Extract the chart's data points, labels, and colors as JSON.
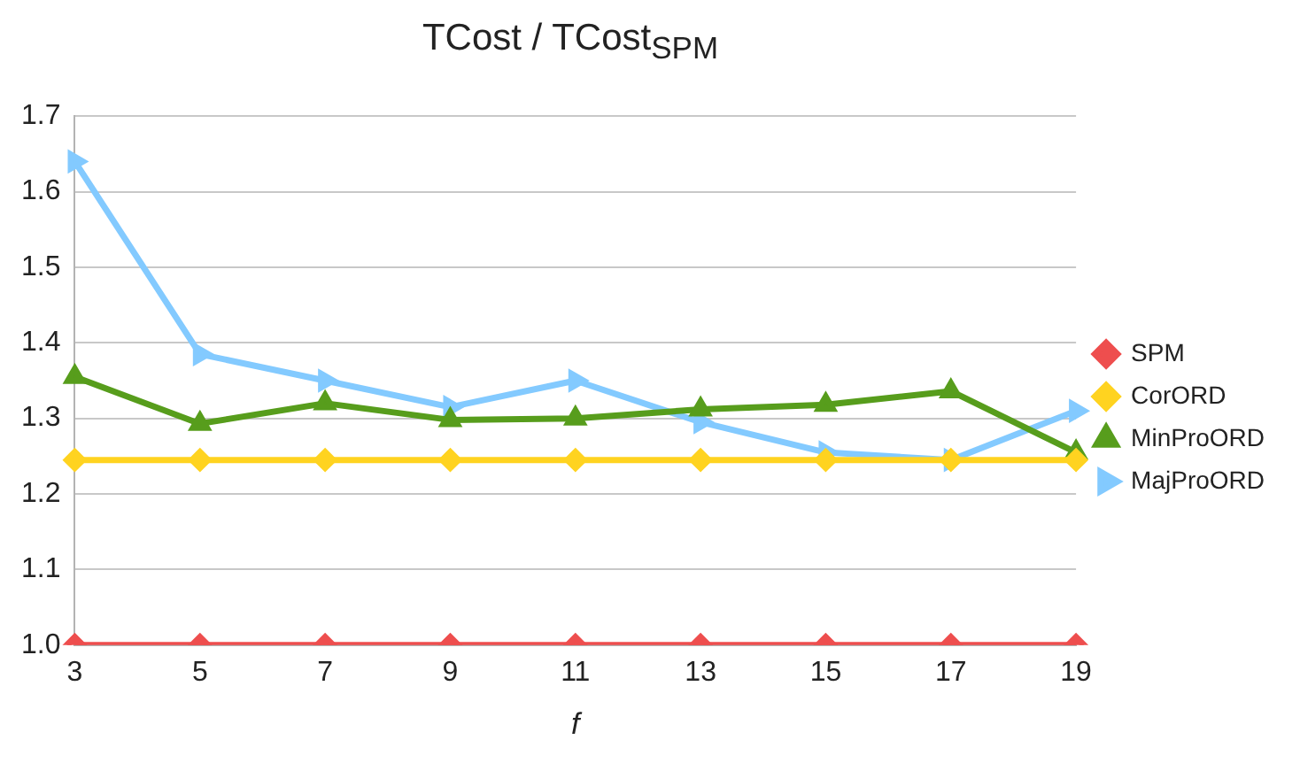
{
  "chart_data": {
    "type": "line",
    "title": "TCost / TCost$_{SPM}$",
    "xlabel": "f",
    "categories": [
      "3",
      "5",
      "7",
      "9",
      "11",
      "13",
      "15",
      "17",
      "19"
    ],
    "ylim": [
      1.0,
      1.7
    ],
    "yticks": [
      {
        "value": 1.0,
        "label": "1.0"
      },
      {
        "value": 1.1,
        "label": "1.1"
      },
      {
        "value": 1.2,
        "label": "1.2"
      },
      {
        "value": 1.3,
        "label": "1.3"
      },
      {
        "value": 1.4,
        "label": "1.4"
      },
      {
        "value": 1.5,
        "label": "1.5"
      },
      {
        "value": 1.6,
        "label": "1.6"
      },
      {
        "value": 1.7,
        "label": "1.7"
      }
    ],
    "grid": "y",
    "legend": "right",
    "series": [
      {
        "name": "SPM",
        "color": "#ee4e4e",
        "marker": "diamond",
        "values": [
          1.0,
          1.0,
          1.0,
          1.0,
          1.0,
          1.0,
          1.0,
          1.0,
          1.0
        ]
      },
      {
        "name": "CorORD",
        "color": "#ffd320",
        "marker": "diamond",
        "values": [
          1.245,
          1.245,
          1.245,
          1.245,
          1.245,
          1.245,
          1.245,
          1.245,
          1.245
        ]
      },
      {
        "name": "MinProORD",
        "color": "#579d1c",
        "marker": "triangle",
        "values": [
          1.355,
          1.293,
          1.32,
          1.298,
          1.3,
          1.312,
          1.318,
          1.336,
          1.255
        ]
      },
      {
        "name": "MajProORD",
        "color": "#83caff",
        "marker": "triangle-right",
        "values": [
          1.64,
          1.385,
          1.35,
          1.315,
          1.35,
          1.295,
          1.255,
          1.245,
          1.31
        ]
      }
    ]
  }
}
